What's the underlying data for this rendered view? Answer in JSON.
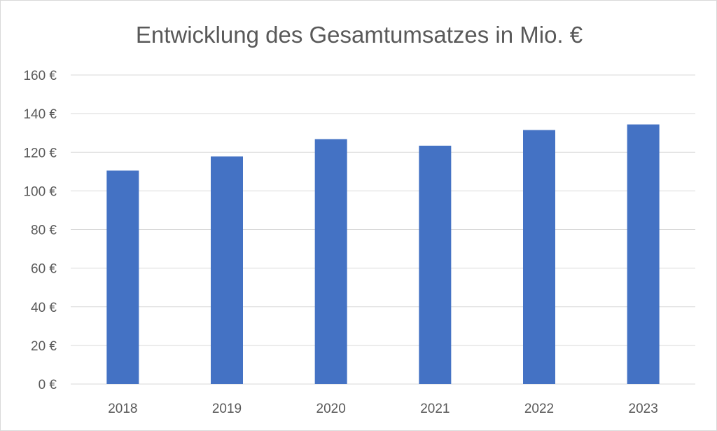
{
  "chart_data": {
    "type": "bar",
    "title": "Entwicklung des Gesamtumsatzes in Mio. €",
    "categories": [
      "2018",
      "2019",
      "2020",
      "2021",
      "2022",
      "2023"
    ],
    "values": [
      110.5,
      117.8,
      126.8,
      123.4,
      131.5,
      134.4
    ],
    "xlabel": "",
    "ylabel": "",
    "ylim": [
      0,
      160
    ],
    "yticks": [
      0,
      20,
      40,
      60,
      80,
      100,
      120,
      140,
      160
    ],
    "y_tick_format": "{v} €",
    "grid": true,
    "legend": "none",
    "bar_color": "#4472C4",
    "grid_color": "#D9D9D9",
    "text_color": "#595959"
  }
}
